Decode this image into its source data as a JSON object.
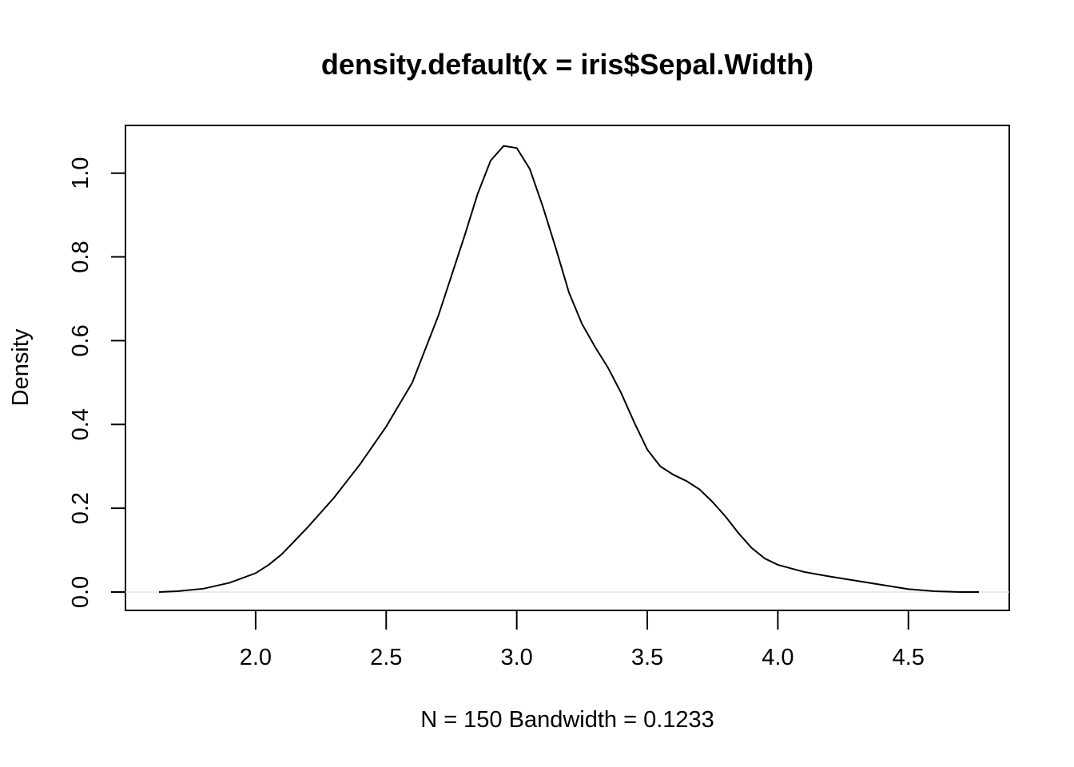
{
  "chart_data": {
    "type": "line",
    "title": "density.default(x = iris$Sepal.Width)",
    "xlabel": "N = 150   Bandwidth = 0.1233",
    "ylabel": "Density",
    "xlim": [
      1.63,
      4.77
    ],
    "ylim": [
      0,
      1.07
    ],
    "x_ticks": [
      2.0,
      2.5,
      3.0,
      3.5,
      4.0,
      4.5
    ],
    "x_tick_labels": [
      "2.0",
      "2.5",
      "3.0",
      "3.5",
      "4.0",
      "4.5"
    ],
    "y_ticks": [
      0.0,
      0.2,
      0.4,
      0.6,
      0.8,
      1.0
    ],
    "y_tick_labels": [
      "0.0",
      "0.2",
      "0.4",
      "0.6",
      "0.8",
      "1.0"
    ],
    "grid": false,
    "legend": null,
    "series": [
      {
        "x": [
          1.63,
          1.7,
          1.8,
          1.9,
          2.0,
          2.05,
          2.1,
          2.2,
          2.3,
          2.4,
          2.5,
          2.6,
          2.7,
          2.8,
          2.85,
          2.9,
          2.95,
          3.0,
          3.05,
          3.1,
          3.15,
          3.2,
          3.25,
          3.3,
          3.35,
          3.4,
          3.45,
          3.5,
          3.55,
          3.6,
          3.65,
          3.7,
          3.75,
          3.8,
          3.85,
          3.9,
          3.95,
          4.0,
          4.1,
          4.2,
          4.3,
          4.4,
          4.5,
          4.6,
          4.7,
          4.77
        ],
        "y": [
          0.0,
          0.002,
          0.008,
          0.022,
          0.045,
          0.065,
          0.09,
          0.155,
          0.225,
          0.305,
          0.395,
          0.5,
          0.66,
          0.85,
          0.95,
          1.03,
          1.065,
          1.06,
          1.01,
          0.92,
          0.82,
          0.715,
          0.64,
          0.585,
          0.535,
          0.475,
          0.405,
          0.34,
          0.3,
          0.28,
          0.265,
          0.245,
          0.215,
          0.18,
          0.14,
          0.105,
          0.08,
          0.065,
          0.048,
          0.037,
          0.027,
          0.017,
          0.007,
          0.002,
          0.0,
          0.0
        ]
      }
    ]
  }
}
